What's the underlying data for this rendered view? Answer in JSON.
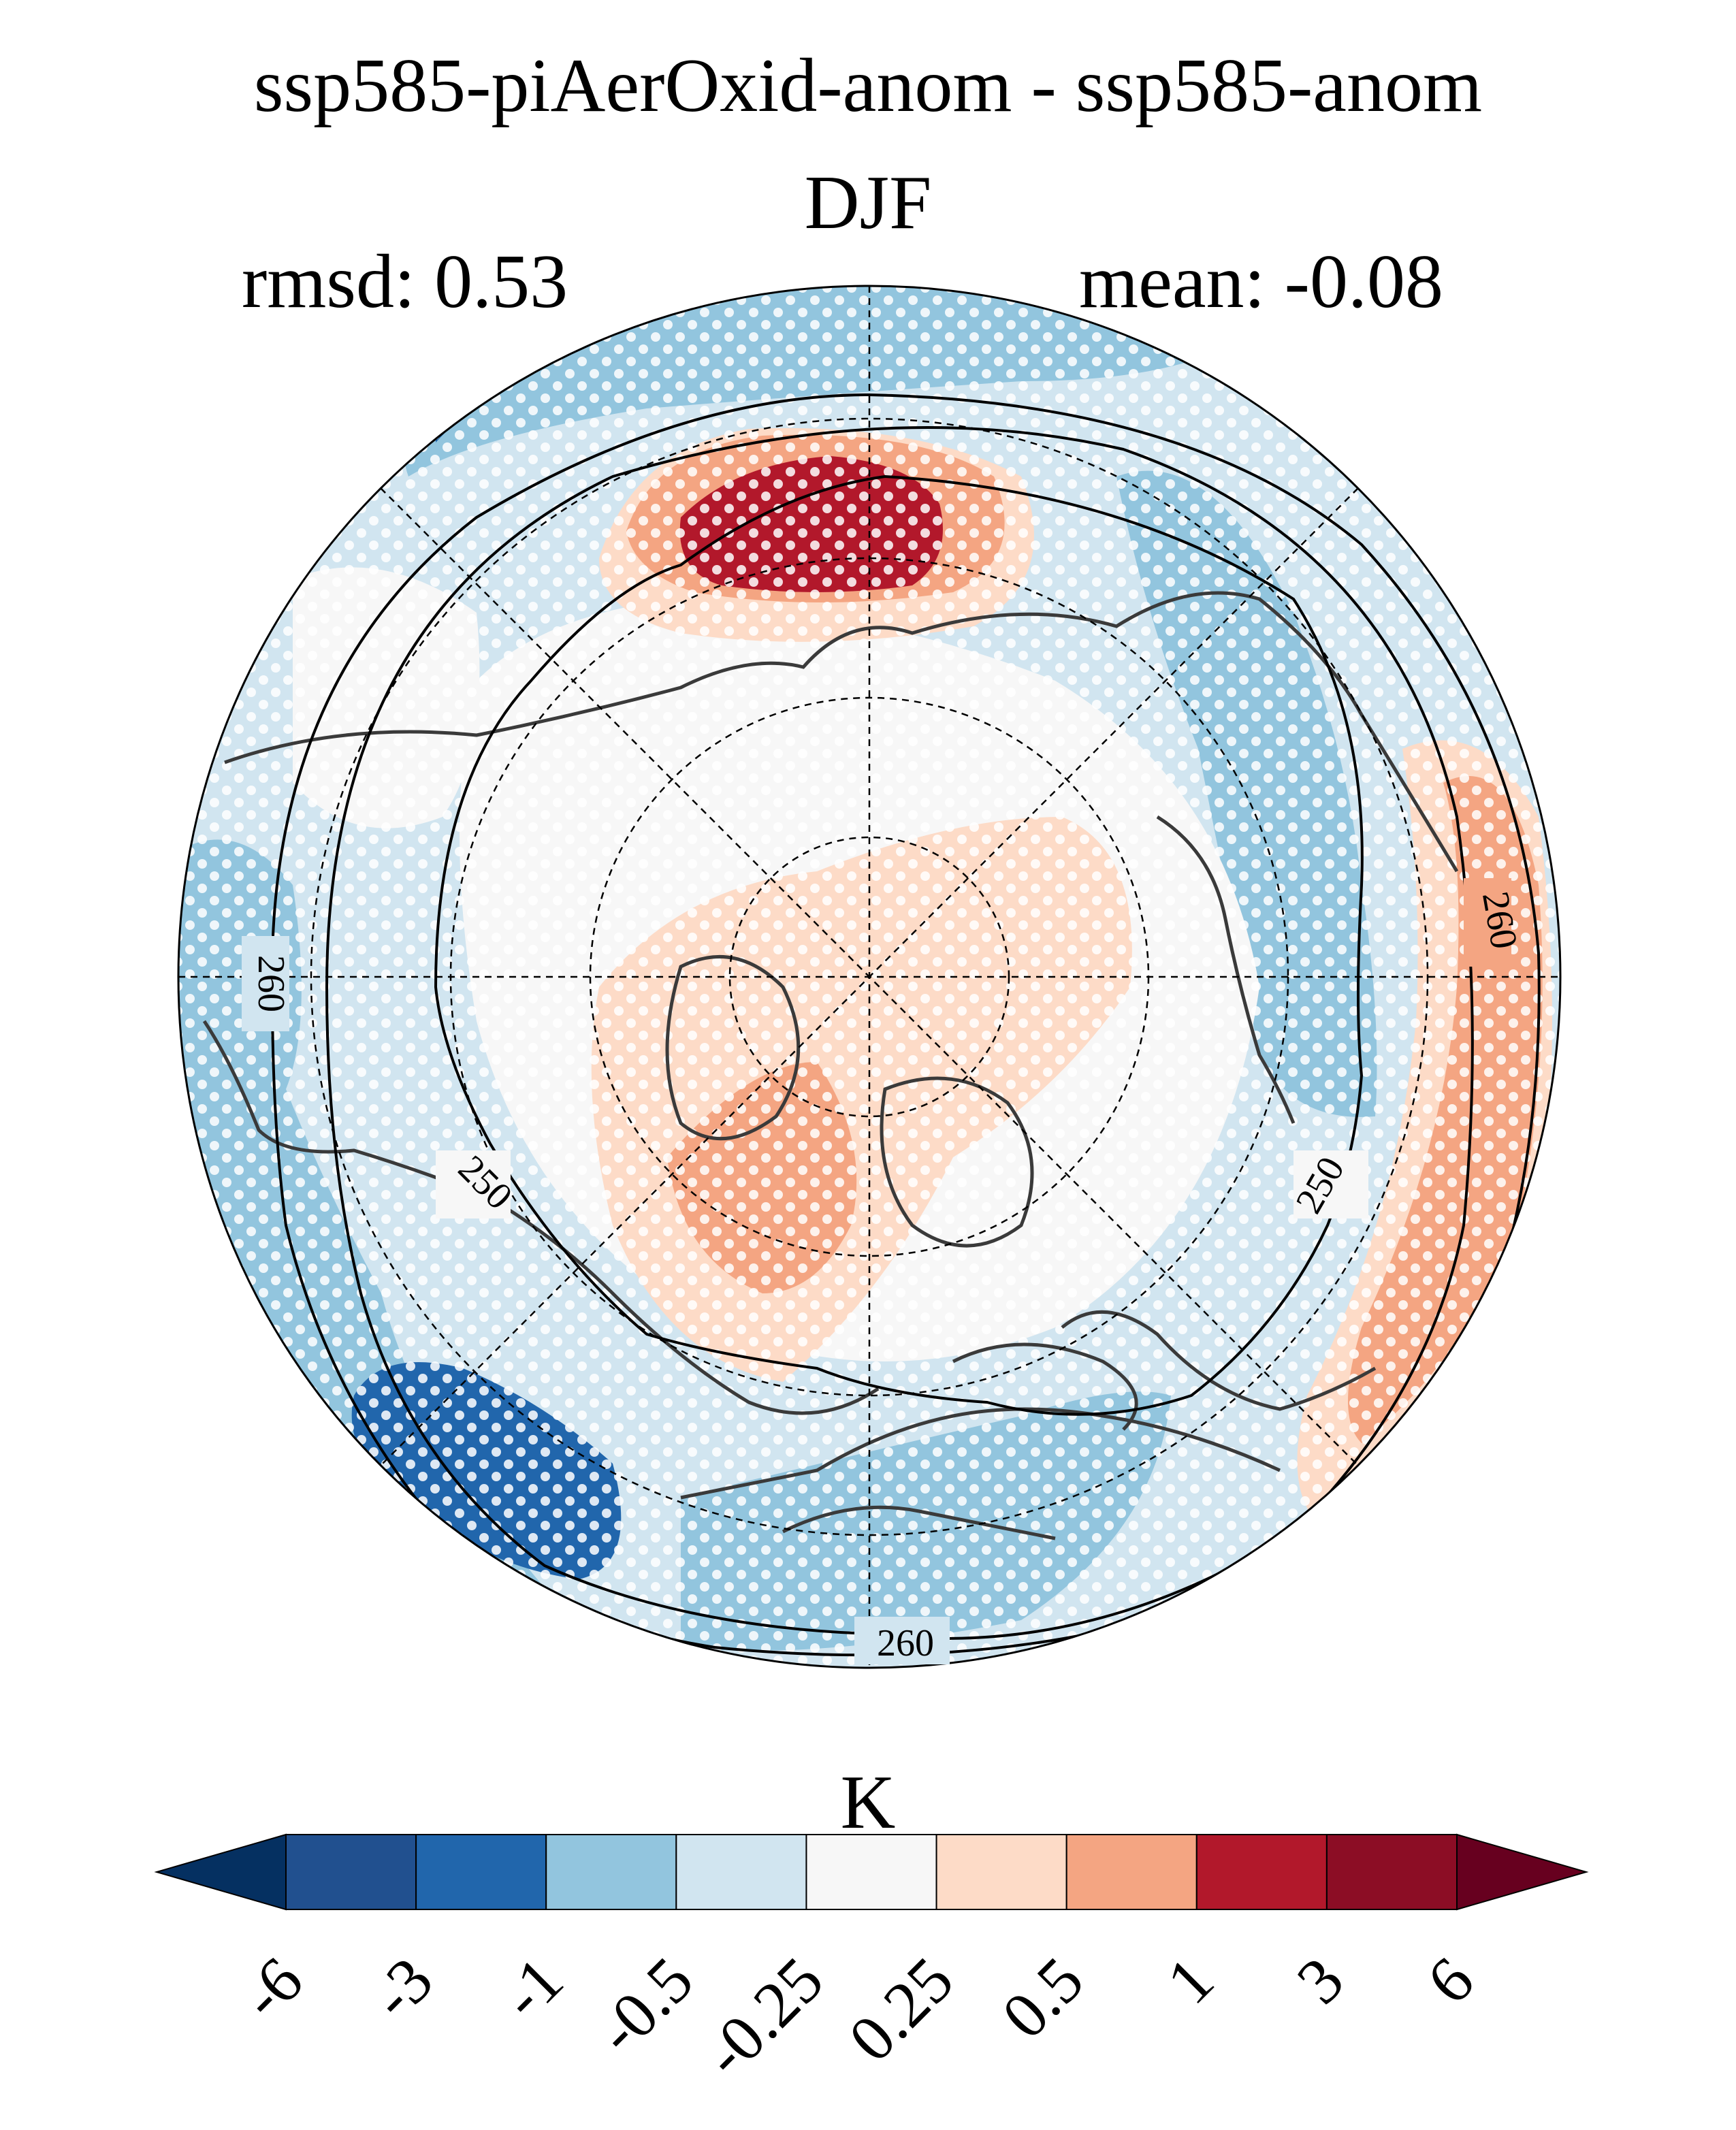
{
  "header": {
    "title": "ssp585-piAerOxid-anom - ssp585-anom",
    "season": "DJF",
    "rmsd_label": "rmsd: 0.53",
    "mean_label": "mean: -0.08"
  },
  "map": {
    "projection": "north-polar-stereographic",
    "variable_difference": "ssp585-piAerOxid-anom minus ssp585-anom",
    "stippling": "white dots",
    "contour_labels": [
      "260",
      "260",
      "260",
      "250",
      "250"
    ],
    "colors": {
      "c_lt_-3": "#053061",
      "c_-3_-1": "#2166ac",
      "c_-1_-0.5": "#92c5de",
      "c_-0.5_-0.25": "#d1e5f0",
      "c_-0.25_0.25": "#f7f7f7",
      "c_0.25_0.5": "#fddbc7",
      "c_0.5_1": "#f4a582",
      "c_1_3": "#b2182b",
      "c_3_6": "#67001f"
    }
  },
  "colorbar": {
    "unit": "K",
    "tick_labels": [
      "-6",
      "-3",
      "-1",
      "-0.5",
      "-0.25",
      "0.25",
      "0.5",
      "1",
      "3",
      "6"
    ],
    "colors": [
      "#053061",
      "#21508f",
      "#2166ac",
      "#92c5de",
      "#d1e5f0",
      "#f7f7f7",
      "#fddbc7",
      "#f4a582",
      "#b2182b",
      "#8c0d25",
      "#67001f"
    ]
  }
}
